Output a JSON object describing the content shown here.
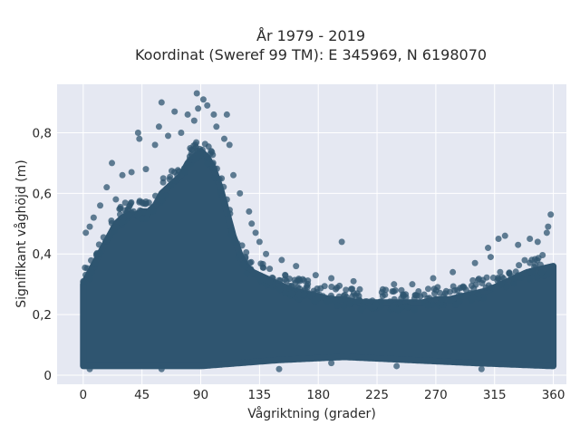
{
  "chart_data": {
    "type": "scatter",
    "title_line1": "År 1979 - 2019",
    "title_line2": "Koordinat (Sweref 99 TM): E 345969, N 6198070",
    "xlabel": "Vågriktning (grader)",
    "ylabel": "Signifikant våghöjd (m)",
    "xlim": [
      -20,
      370
    ],
    "ylim": [
      -0.03,
      0.96
    ],
    "x_ticks": [
      0,
      45,
      90,
      135,
      180,
      225,
      270,
      315,
      360
    ],
    "x_tick_labels": [
      "0",
      "45",
      "90",
      "135",
      "180",
      "225",
      "270",
      "315",
      "360"
    ],
    "y_ticks": [
      0,
      0.2,
      0.4,
      0.6,
      0.8
    ],
    "y_tick_labels": [
      "0",
      "0,2",
      "0,4",
      "0,6",
      "0,8"
    ],
    "grid": true,
    "legend": "none",
    "point_color": "#2f5570",
    "background_color": "#e5e8f2",
    "envelope_upper": {
      "x": [
        0,
        5,
        10,
        15,
        20,
        25,
        30,
        35,
        40,
        45,
        50,
        55,
        60,
        65,
        70,
        75,
        80,
        85,
        90,
        95,
        100,
        105,
        110,
        115,
        120,
        125,
        130,
        135,
        140,
        145,
        150,
        155,
        160,
        170,
        180,
        190,
        200,
        210,
        220,
        230,
        240,
        250,
        260,
        270,
        280,
        290,
        300,
        310,
        320,
        330,
        340,
        350,
        360
      ],
      "y": [
        0.3,
        0.34,
        0.38,
        0.42,
        0.46,
        0.5,
        0.52,
        0.53,
        0.53,
        0.54,
        0.54,
        0.56,
        0.6,
        0.62,
        0.64,
        0.66,
        0.7,
        0.72,
        0.74,
        0.72,
        0.68,
        0.62,
        0.54,
        0.46,
        0.4,
        0.36,
        0.34,
        0.33,
        0.32,
        0.31,
        0.3,
        0.29,
        0.28,
        0.27,
        0.26,
        0.25,
        0.25,
        0.24,
        0.24,
        0.24,
        0.24,
        0.24,
        0.24,
        0.25,
        0.25,
        0.26,
        0.27,
        0.28,
        0.3,
        0.32,
        0.34,
        0.35,
        0.36
      ]
    },
    "envelope_lower": {
      "x": [
        0,
        90,
        150,
        200,
        250,
        300,
        360
      ],
      "y": [
        0.03,
        0.03,
        0.05,
        0.06,
        0.05,
        0.04,
        0.03
      ]
    },
    "outliers": [
      {
        "x": 87,
        "y": 0.93
      },
      {
        "x": 92,
        "y": 0.91
      },
      {
        "x": 95,
        "y": 0.89
      },
      {
        "x": 88,
        "y": 0.88
      },
      {
        "x": 100,
        "y": 0.86
      },
      {
        "x": 110,
        "y": 0.86
      },
      {
        "x": 60,
        "y": 0.9
      },
      {
        "x": 70,
        "y": 0.87
      },
      {
        "x": 80,
        "y": 0.86
      },
      {
        "x": 85,
        "y": 0.84
      },
      {
        "x": 102,
        "y": 0.82
      },
      {
        "x": 42,
        "y": 0.8
      },
      {
        "x": 58,
        "y": 0.82
      },
      {
        "x": 75,
        "y": 0.8
      },
      {
        "x": 43,
        "y": 0.78
      },
      {
        "x": 65,
        "y": 0.79
      },
      {
        "x": 108,
        "y": 0.78
      },
      {
        "x": 55,
        "y": 0.76
      },
      {
        "x": 112,
        "y": 0.76
      },
      {
        "x": 22,
        "y": 0.7
      },
      {
        "x": 48,
        "y": 0.68
      },
      {
        "x": 30,
        "y": 0.66
      },
      {
        "x": 37,
        "y": 0.67
      },
      {
        "x": 115,
        "y": 0.66
      },
      {
        "x": 18,
        "y": 0.62
      },
      {
        "x": 120,
        "y": 0.6
      },
      {
        "x": 13,
        "y": 0.56
      },
      {
        "x": 25,
        "y": 0.58
      },
      {
        "x": 8,
        "y": 0.52
      },
      {
        "x": 5,
        "y": 0.49
      },
      {
        "x": 2,
        "y": 0.47
      },
      {
        "x": 127,
        "y": 0.54
      },
      {
        "x": 129,
        "y": 0.5
      },
      {
        "x": 132,
        "y": 0.47
      },
      {
        "x": 135,
        "y": 0.44
      },
      {
        "x": 140,
        "y": 0.4
      },
      {
        "x": 152,
        "y": 0.38
      },
      {
        "x": 163,
        "y": 0.36
      },
      {
        "x": 198,
        "y": 0.44
      },
      {
        "x": 178,
        "y": 0.33
      },
      {
        "x": 190,
        "y": 0.32
      },
      {
        "x": 207,
        "y": 0.31
      },
      {
        "x": 238,
        "y": 0.3
      },
      {
        "x": 252,
        "y": 0.3
      },
      {
        "x": 268,
        "y": 0.32
      },
      {
        "x": 283,
        "y": 0.34
      },
      {
        "x": 300,
        "y": 0.37
      },
      {
        "x": 312,
        "y": 0.39
      },
      {
        "x": 318,
        "y": 0.45
      },
      {
        "x": 323,
        "y": 0.46
      },
      {
        "x": 333,
        "y": 0.43
      },
      {
        "x": 342,
        "y": 0.45
      },
      {
        "x": 348,
        "y": 0.44
      },
      {
        "x": 355,
        "y": 0.47
      },
      {
        "x": 358,
        "y": 0.53
      },
      {
        "x": 356,
        "y": 0.49
      },
      {
        "x": 310,
        "y": 0.42
      },
      {
        "x": 150,
        "y": 0.02
      },
      {
        "x": 190,
        "y": 0.04
      },
      {
        "x": 305,
        "y": 0.02
      },
      {
        "x": 5,
        "y": 0.02
      },
      {
        "x": 60,
        "y": 0.02
      },
      {
        "x": 240,
        "y": 0.03
      }
    ]
  }
}
